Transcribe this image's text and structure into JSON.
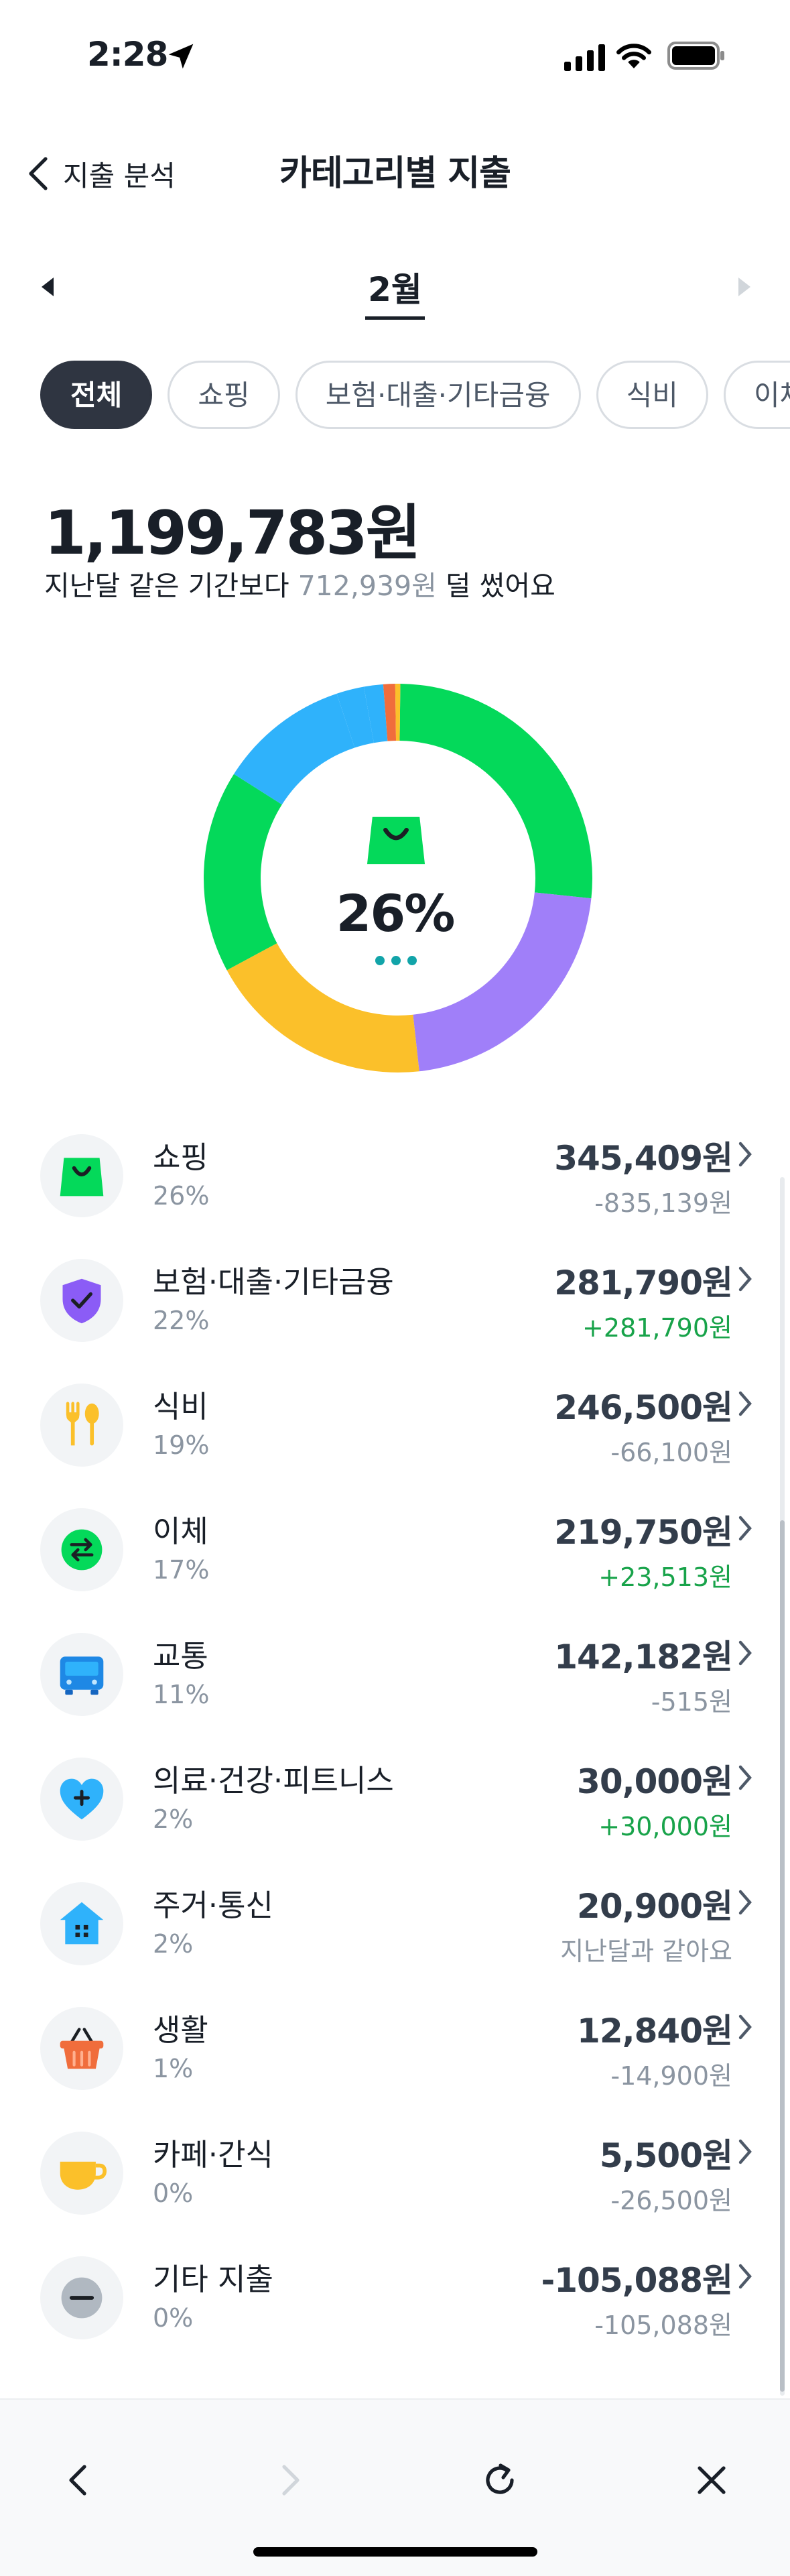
{
  "status_bar": {
    "time": "2:28"
  },
  "header": {
    "back_label": "지출 분석",
    "title": "카테고리별 지출"
  },
  "month": {
    "label": "2월"
  },
  "chips": [
    "전체",
    "쇼핑",
    "보험·대출·기타금융",
    "식비",
    "이체"
  ],
  "summary": {
    "total": "1,199,783원",
    "compare_prefix": "지난달 같은 기간보다 ",
    "compare_value": "712,939원",
    "compare_suffix": " 덜 썼어요"
  },
  "donut": {
    "center_percent": "26%"
  },
  "colors": {
    "green": "#04d95a",
    "purple": "#a07ff9",
    "yellow": "#fbc02a",
    "blue": "#2fb2fb",
    "orange": "#f06d3c",
    "plus": "#18a34a"
  },
  "chart_data": {
    "type": "pie",
    "categories": [
      "쇼핑",
      "보험·대출·기타금융",
      "식비",
      "이체",
      "교통",
      "의료·건강·피트니스",
      "주거·통신",
      "생활",
      "카페·간식"
    ],
    "values": [
      345409,
      281790,
      246500,
      219750,
      142182,
      30000,
      20900,
      12840,
      5500
    ],
    "colors": [
      "#04d95a",
      "#a07ff9",
      "#fbc02a",
      "#04d95a",
      "#2fb2fb",
      "#2fb2fb",
      "#2fb2fb",
      "#f06d3c",
      "#fbc02a"
    ]
  },
  "categories": [
    {
      "name": "쇼핑",
      "pct": "26%",
      "amount": "345,409원",
      "diff": "-835,139원",
      "diff_type": "minus",
      "icon": "shopping-bag-icon"
    },
    {
      "name": "보험·대출·기타금융",
      "pct": "22%",
      "amount": "281,790원",
      "diff": "+281,790원",
      "diff_type": "plus",
      "icon": "shield-icon"
    },
    {
      "name": "식비",
      "pct": "19%",
      "amount": "246,500원",
      "diff": "-66,100원",
      "diff_type": "minus",
      "icon": "fork-spoon-icon"
    },
    {
      "name": "이체",
      "pct": "17%",
      "amount": "219,750원",
      "diff": "+23,513원",
      "diff_type": "plus",
      "icon": "transfer-icon"
    },
    {
      "name": "교통",
      "pct": "11%",
      "amount": "142,182원",
      "diff": "-515원",
      "diff_type": "minus",
      "icon": "bus-icon"
    },
    {
      "name": "의료·건강·피트니스",
      "pct": "2%",
      "amount": "30,000원",
      "diff": "+30,000원",
      "diff_type": "plus",
      "icon": "heart-plus-icon"
    },
    {
      "name": "주거·통신",
      "pct": "2%",
      "amount": "20,900원",
      "diff": "지난달과 같아요",
      "diff_type": "same",
      "icon": "house-icon"
    },
    {
      "name": "생활",
      "pct": "1%",
      "amount": "12,840원",
      "diff": "-14,900원",
      "diff_type": "minus",
      "icon": "basket-icon"
    },
    {
      "name": "카페·간식",
      "pct": "0%",
      "amount": "5,500원",
      "diff": "-26,500원",
      "diff_type": "minus",
      "icon": "cup-icon"
    },
    {
      "name": "기타 지출",
      "pct": "0%",
      "amount": "-105,088원",
      "diff": "-105,088원",
      "diff_type": "minus",
      "icon": "minus-circle-icon"
    }
  ]
}
